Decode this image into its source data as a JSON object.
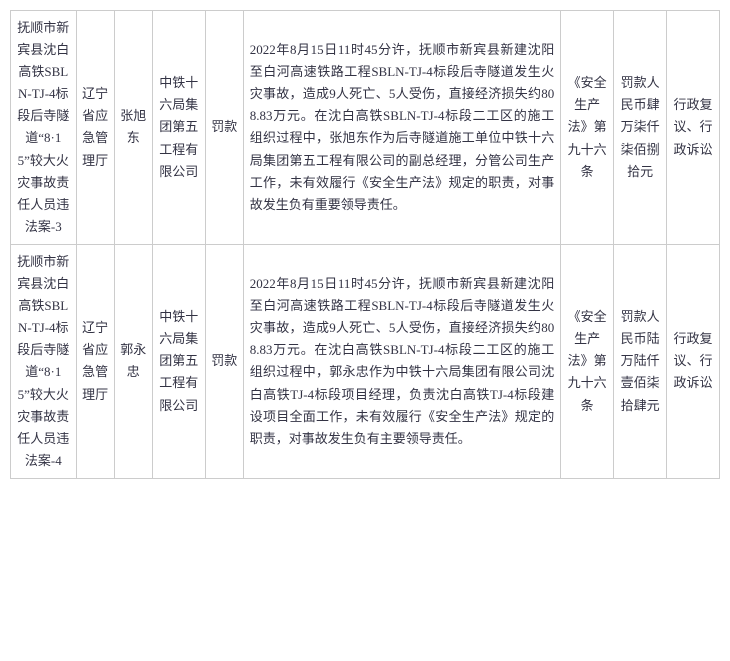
{
  "rows": [
    {
      "case_name": "抚顺市新宾县沈白高铁SBLN-TJ-4标段后寺隧道“8·15”较大火灾事故责任人员违法案-3",
      "agency": "辽宁省应急管理厅",
      "person": "张旭东",
      "company": "中铁十六局集团第五工程有限公司",
      "penalty_type": "罚款",
      "description": "2022年8月15日11时45分许，抚顺市新宾县新建沈阳至白河高速铁路工程SBLN-TJ-4标段后寺隧道发生火灾事故，造成9人死亡、5人受伤，直接经济损失约808.83万元。在沈白高铁SBLN-TJ-4标段二工区的施工组织过程中，张旭东作为后寺隧道施工单位中铁十六局集团第五工程有限公司的副总经理，分管公司生产工作，未有效履行《安全生产法》规定的职责，对事故发生负有重要领导责任。",
      "law_basis": "《安全生产法》第九十六条",
      "penalty": "罚款人民币肆万柒仟柒佰捌拾元",
      "remedy": "行政复议、行政诉讼"
    },
    {
      "case_name": "抚顺市新宾县沈白高铁SBLN-TJ-4标段后寺隧道“8·15”较大火灾事故责任人员违法案-4",
      "agency": "辽宁省应急管理厅",
      "person": "郭永忠",
      "company": "中铁十六局集团第五工程有限公司",
      "penalty_type": "罚款",
      "description": "2022年8月15日11时45分许，抚顺市新宾县新建沈阳至白河高速铁路工程SBLN-TJ-4标段后寺隧道发生火灾事故，造成9人死亡、5人受伤，直接经济损失约808.83万元。在沈白高铁SBLN-TJ-4标段二工区的施工组织过程中，郭永忠作为中铁十六局集团有限公司沈白高铁TJ-4标段项目经理，负责沈白高铁TJ-4标段建设项目全面工作，未有效履行《安全生产法》规定的职责，对事故发生负有主要领导责任。",
      "law_basis": "《安全生产法》第九十六条",
      "penalty": "罚款人民币陆万陆仟壹佰柒拾肆元",
      "remedy": "行政复议、行政诉讼"
    }
  ]
}
